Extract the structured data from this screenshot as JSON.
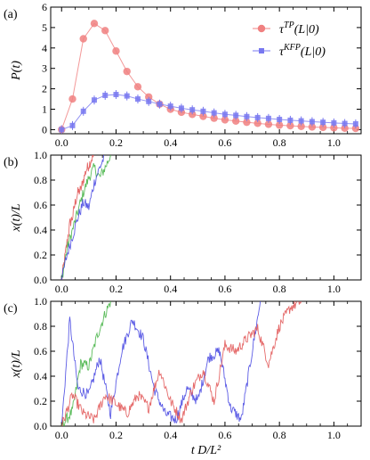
{
  "chart_data": [
    {
      "panel_label": "(a)",
      "type": "scatter",
      "xlabel": "",
      "ylabel": "P(t)",
      "xlim": [
        -0.04,
        1.1
      ],
      "ylim": [
        -0.2,
        6.0
      ],
      "xticks": [
        "0.0",
        "0.2",
        "0.4",
        "0.6",
        "0.8",
        "1.0"
      ],
      "xtick_values": [
        0,
        0.2,
        0.4,
        0.6,
        0.8,
        1.0
      ],
      "yticks": [
        "0",
        "1",
        "2",
        "3",
        "4",
        "5",
        "6"
      ],
      "ytick_values": [
        0,
        1,
        2,
        3,
        4,
        5,
        6
      ],
      "legend_position": "top-right",
      "series": [
        {
          "name": "τ^{TP}(L|0)",
          "legend_main": "τ",
          "legend_sup": "TP",
          "legend_tail": "(L|0)",
          "color": "#f08080",
          "marker": "circle",
          "x": [
            0.0,
            0.04,
            0.08,
            0.12,
            0.16,
            0.2,
            0.24,
            0.28,
            0.32,
            0.36,
            0.4,
            0.44,
            0.48,
            0.52,
            0.56,
            0.6,
            0.64,
            0.68,
            0.72,
            0.76,
            0.8,
            0.84,
            0.88,
            0.92,
            0.96,
            1.0,
            1.04,
            1.08
          ],
          "y": [
            0.0,
            1.5,
            4.45,
            5.2,
            4.85,
            3.85,
            2.85,
            2.1,
            1.6,
            1.25,
            1.0,
            0.85,
            0.75,
            0.65,
            0.56,
            0.48,
            0.42,
            0.36,
            0.31,
            0.26,
            0.22,
            0.19,
            0.16,
            0.13,
            0.11,
            0.09,
            0.07,
            0.06
          ]
        },
        {
          "name": "τ^{KFP}(L|0)",
          "legend_main": "τ",
          "legend_sup": "KFP",
          "legend_tail": "(L|0)",
          "color": "#7878f0",
          "marker": "square",
          "x": [
            0.0,
            0.04,
            0.08,
            0.12,
            0.16,
            0.2,
            0.24,
            0.28,
            0.32,
            0.36,
            0.4,
            0.44,
            0.48,
            0.52,
            0.56,
            0.6,
            0.64,
            0.68,
            0.72,
            0.76,
            0.8,
            0.84,
            0.88,
            0.92,
            0.96,
            1.0,
            1.04,
            1.08
          ],
          "y": [
            0.0,
            0.2,
            0.9,
            1.45,
            1.68,
            1.72,
            1.65,
            1.5,
            1.38,
            1.25,
            1.15,
            1.05,
            0.97,
            0.9,
            0.82,
            0.75,
            0.7,
            0.64,
            0.59,
            0.55,
            0.5,
            0.46,
            0.43,
            0.39,
            0.36,
            0.33,
            0.3,
            0.28
          ]
        }
      ]
    },
    {
      "panel_label": "(b)",
      "type": "line",
      "xlabel": "",
      "ylabel": "x(t)/L",
      "xlim": [
        -0.04,
        1.1
      ],
      "ylim": [
        0.0,
        1.0
      ],
      "xticks": [
        "0.0",
        "0.2",
        "0.4",
        "0.6",
        "0.8",
        "1.0"
      ],
      "xtick_values": [
        0,
        0.2,
        0.4,
        0.6,
        0.8,
        1.0
      ],
      "yticks": [
        "0.0",
        "0.2",
        "0.4",
        "0.6",
        "0.8",
        "1.0"
      ],
      "ytick_values": [
        0,
        0.2,
        0.4,
        0.6,
        0.8,
        1.0
      ],
      "series": [
        {
          "color": "#e05050",
          "x": [
            0.0,
            0.01,
            0.02,
            0.03,
            0.04,
            0.05,
            0.06,
            0.07,
            0.08,
            0.09,
            0.1,
            0.11,
            0.12
          ],
          "y": [
            0.0,
            0.15,
            0.3,
            0.45,
            0.5,
            0.62,
            0.7,
            0.72,
            0.8,
            0.88,
            0.92,
            0.97,
            1.0
          ]
        },
        {
          "color": "#40b040",
          "x": [
            0.0,
            0.02,
            0.04,
            0.06,
            0.08,
            0.1,
            0.12,
            0.14,
            0.16,
            0.18
          ],
          "y": [
            0.0,
            0.25,
            0.4,
            0.55,
            0.7,
            0.82,
            0.9,
            0.82,
            0.9,
            1.0
          ]
        },
        {
          "color": "#4040e0",
          "x": [
            0.0,
            0.02,
            0.04,
            0.06,
            0.08,
            0.1,
            0.12,
            0.14,
            0.16
          ],
          "y": [
            0.0,
            0.2,
            0.35,
            0.5,
            0.62,
            0.58,
            0.78,
            0.9,
            1.0
          ]
        }
      ]
    },
    {
      "panel_label": "(c)",
      "type": "line",
      "xlabel": "t D/L²",
      "ylabel": "x(t)/L",
      "xlim": [
        -0.04,
        1.1
      ],
      "ylim": [
        0.0,
        1.0
      ],
      "xticks": [
        "0.0",
        "0.2",
        "0.4",
        "0.6",
        "0.8",
        "1.0"
      ],
      "xtick_values": [
        0,
        0.2,
        0.4,
        0.6,
        0.8,
        1.0
      ],
      "yticks": [
        "0.0",
        "0.2",
        "0.4",
        "0.6",
        "0.8",
        "1.0"
      ],
      "ytick_values": [
        0,
        0.2,
        0.4,
        0.6,
        0.8,
        1.0
      ],
      "series": [
        {
          "color": "#40b040",
          "x": [
            0.0,
            0.04,
            0.07,
            0.1,
            0.13,
            0.16,
            0.18
          ],
          "y": [
            0.0,
            0.12,
            0.5,
            0.48,
            0.72,
            0.9,
            1.0
          ]
        },
        {
          "color": "#4040e0",
          "x": [
            0.0,
            0.03,
            0.06,
            0.1,
            0.14,
            0.18,
            0.22,
            0.26,
            0.3,
            0.34,
            0.38,
            0.42,
            0.46,
            0.5,
            0.54,
            0.58,
            0.62,
            0.66,
            0.7,
            0.73
          ],
          "y": [
            0.0,
            0.85,
            0.3,
            0.25,
            0.55,
            0.1,
            0.6,
            0.85,
            0.7,
            0.3,
            0.1,
            0.05,
            0.3,
            0.2,
            0.55,
            0.6,
            0.15,
            0.05,
            0.6,
            1.0
          ]
        },
        {
          "color": "#e05050",
          "x": [
            0.0,
            0.04,
            0.08,
            0.12,
            0.16,
            0.2,
            0.24,
            0.28,
            0.32,
            0.36,
            0.4,
            0.44,
            0.48,
            0.52,
            0.56,
            0.6,
            0.64,
            0.68,
            0.72,
            0.76,
            0.8,
            0.84,
            0.88
          ],
          "y": [
            0.0,
            0.25,
            0.1,
            0.05,
            0.25,
            0.18,
            0.1,
            0.25,
            0.15,
            0.45,
            0.2,
            0.05,
            0.3,
            0.45,
            0.2,
            0.65,
            0.6,
            0.7,
            0.78,
            0.5,
            0.8,
            0.95,
            1.0
          ]
        }
      ]
    }
  ]
}
